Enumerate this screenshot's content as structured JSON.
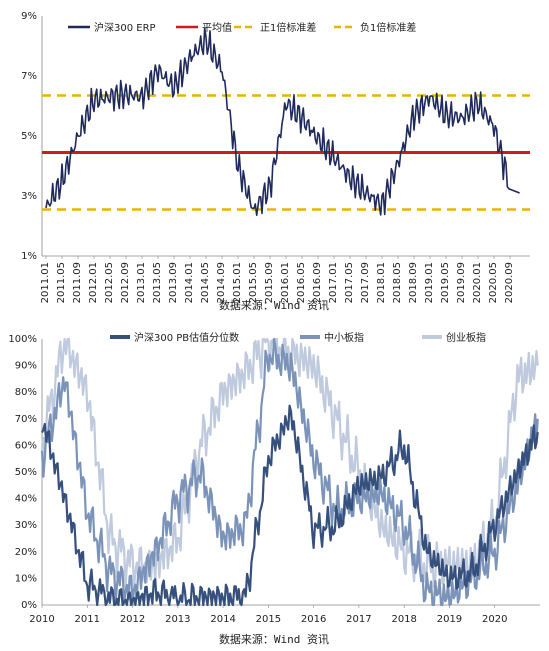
{
  "source_label": "数据来源：Wind 资讯",
  "chart_data": [
    {
      "type": "line",
      "ylim": [
        1,
        9
      ],
      "yticks": [
        "1%",
        "3%",
        "5%",
        "7%",
        "9%"
      ],
      "categories": [
        "2011.01",
        "2011.05",
        "2011.09",
        "2012.01",
        "2012.05",
        "2012.09",
        "2013.01",
        "2013.05",
        "2013.09",
        "2014.01",
        "2014.05",
        "2014.09",
        "2015.01",
        "2015.05",
        "2015.09",
        "2016.01",
        "2016.05",
        "2016.09",
        "2017.01",
        "2017.05",
        "2017.09",
        "2018.01",
        "2018.05",
        "2018.09",
        "2019.01",
        "2019.05",
        "2019.09",
        "2020.01",
        "2020.05",
        "2020.09"
      ],
      "series": [
        {
          "name": "沪深300 ERP",
          "style": "solid",
          "color": "#1f2a5c",
          "values": [
            2.6,
            3.5,
            5.0,
            6.2,
            6.3,
            6.4,
            6.3,
            7.2,
            6.6,
            7.6,
            8.2,
            7.2,
            4.0,
            2.5,
            3.3,
            6.1,
            5.6,
            4.9,
            4.3,
            3.6,
            3.1,
            2.7,
            4.1,
            5.7,
            6.3,
            5.7,
            5.6,
            6.1,
            5.3,
            3.3
          ]
        },
        {
          "name": "平均值",
          "style": "solid",
          "color": "#c81e1e",
          "constant": 4.45
        },
        {
          "name": "正1倍标准差",
          "style": "dashed",
          "color": "#e8b400",
          "constant": 6.35
        },
        {
          "name": "负1倍标准差",
          "style": "dashed",
          "color": "#e8b400",
          "constant": 2.55
        }
      ]
    },
    {
      "type": "line",
      "ylim": [
        0,
        100
      ],
      "yticks": [
        "0%",
        "10%",
        "20%",
        "30%",
        "40%",
        "50%",
        "60%",
        "70%",
        "80%",
        "90%",
        "100%"
      ],
      "categories": [
        "2010",
        "2011",
        "2012",
        "2013",
        "2014",
        "2015",
        "2016",
        "2017",
        "2018",
        "2019",
        "2020"
      ],
      "x": [
        2010,
        2010.5,
        2011,
        2011.5,
        2012,
        2012.5,
        2013,
        2013.5,
        2014,
        2014.5,
        2015,
        2015.5,
        2016,
        2016.5,
        2017,
        2017.5,
        2018,
        2018.5,
        2019,
        2019.5,
        2020,
        2020.5,
        2020.95
      ],
      "series": [
        {
          "name": "沪深300 PB估值分位数",
          "color": "#36507e",
          "values": [
            70,
            40,
            8,
            2,
            1,
            5,
            2,
            3,
            3,
            3,
            55,
            72,
            28,
            30,
            45,
            48,
            60,
            20,
            10,
            12,
            30,
            50,
            65
          ]
        },
        {
          "name": "中小板指",
          "color": "#7b93b8",
          "values": [
            55,
            85,
            35,
            12,
            5,
            20,
            40,
            50,
            25,
            30,
            95,
            90,
            55,
            35,
            40,
            42,
            30,
            5,
            3,
            10,
            20,
            45,
            70
          ]
        },
        {
          "name": "创业板指",
          "color": "#bfcade",
          "values": [
            60,
            100,
            80,
            25,
            15,
            15,
            25,
            60,
            80,
            88,
            100,
            95,
            90,
            70,
            50,
            30,
            20,
            15,
            15,
            15,
            30,
            85,
            90
          ]
        }
      ]
    }
  ]
}
